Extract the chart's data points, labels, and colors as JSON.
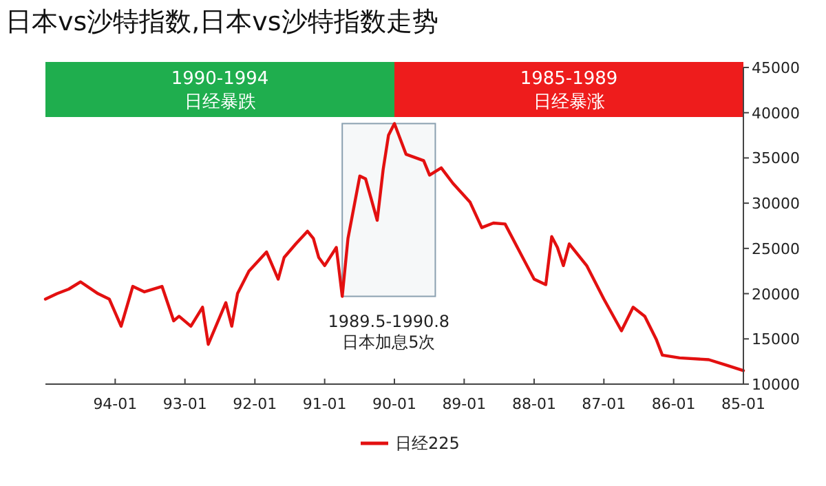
{
  "chart_data": {
    "type": "line",
    "title": "日本vs沙特指数,日本vs沙特指数走势",
    "x": [
      "1985-01",
      "1985-04",
      "1985-07",
      "1985-12",
      "1986-03",
      "1986-04",
      "1986-06",
      "1986-08",
      "1986-10",
      "1987-01",
      "1987-04",
      "1987-07",
      "1987-08",
      "1987-09",
      "1987-10",
      "1987-11",
      "1988-01",
      "1988-03",
      "1988-06",
      "1988-08",
      "1988-10",
      "1988-12",
      "1989-03",
      "1989-05",
      "1989-07",
      "1989-08",
      "1989-11",
      "1990-01",
      "1990-02",
      "1990-03",
      "1990-04",
      "1990-06",
      "1990-07",
      "1990-09",
      "1990-10",
      "1990-11",
      "1991-01",
      "1991-02",
      "1991-03",
      "1991-04",
      "1991-06",
      "1991-08",
      "1991-09",
      "1991-11",
      "1992-02",
      "1992-04",
      "1992-05",
      "1992-06",
      "1992-09",
      "1992-10",
      "1992-12",
      "1993-02",
      "1993-03",
      "1993-05",
      "1993-08",
      "1993-10",
      "1993-12",
      "1994-02",
      "1994-04",
      "1994-07",
      "1994-09",
      "1994-11",
      "1995-01"
    ],
    "series": [
      {
        "name": "日经225",
        "color": "#e31010",
        "values": [
          11500,
          12100,
          12700,
          12900,
          13200,
          14900,
          17500,
          18500,
          15900,
          19400,
          23100,
          25500,
          23100,
          25100,
          26300,
          21000,
          21600,
          24000,
          27700,
          27800,
          27300,
          30100,
          32200,
          33900,
          33100,
          34700,
          35400,
          38800,
          37500,
          33700,
          28100,
          32700,
          33000,
          26100,
          19700,
          25100,
          23100,
          24000,
          26100,
          26900,
          25500,
          24000,
          21600,
          24600,
          22500,
          20000,
          16400,
          19000,
          14400,
          18500,
          16400,
          17500,
          17000,
          20800,
          20200,
          20800,
          16400,
          19400,
          20000,
          21300,
          20500,
          20000,
          19400
        ]
      }
    ],
    "xlim": [
      "1995-01",
      "1985-01"
    ],
    "xticks": [
      {
        "value": "1985-01",
        "label": "85-01"
      },
      {
        "value": "1986-01",
        "label": "86-01"
      },
      {
        "value": "1987-01",
        "label": "87-01"
      },
      {
        "value": "1988-01",
        "label": "88-01"
      },
      {
        "value": "1989-01",
        "label": "89-01"
      },
      {
        "value": "1990-01",
        "label": "90-01"
      },
      {
        "value": "1991-01",
        "label": "91-01"
      },
      {
        "value": "1992-01",
        "label": "92-01"
      },
      {
        "value": "1993-01",
        "label": "93-01"
      },
      {
        "value": "1994-01",
        "label": "94-01"
      }
    ],
    "ylim": [
      10000,
      45000
    ],
    "yticks": [
      10000,
      15000,
      20000,
      25000,
      30000,
      35000,
      40000,
      45000
    ],
    "bands": [
      {
        "axis": "x",
        "from": "1985-01",
        "to": "1990-01",
        "label": "1985-1989\n日经暴涨",
        "color": "#ee1c1c"
      },
      {
        "axis": "x",
        "from": "1990-01",
        "to": "1995-01",
        "label": "1990-1994\n日经暴跌",
        "color": "#1fae4e"
      },
      {
        "axis": "x",
        "from": "1989-06",
        "to": "1990-10",
        "label": "1989.5-1990.8\n日本加息5次",
        "color": "#8aa0b0"
      }
    ],
    "legend": "bottom",
    "grid": false
  }
}
